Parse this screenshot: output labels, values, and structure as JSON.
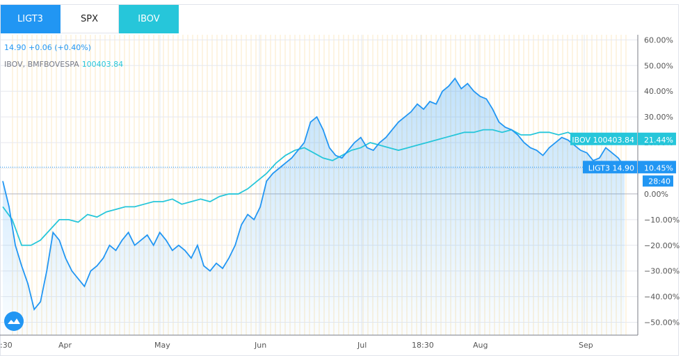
{
  "tabs": [
    {
      "label": "LIGT3"
    },
    {
      "label": "SPX"
    },
    {
      "label": "IBOV"
    }
  ],
  "legend": {
    "line1": "14.90 +0.06 (+0.40%)",
    "line2_label": "IBOV, BMFBOVESPA",
    "line2_value": "100403.84"
  },
  "colors": {
    "ligt3": "#2196f3",
    "ibov": "#26c6da",
    "grid": "#e6e8ee",
    "stripe": "#fbe9c4"
  },
  "chart_data": {
    "type": "line",
    "ylim": [
      -55,
      62
    ],
    "y_ticks": [
      "60.00%",
      "50.00%",
      "40.00%",
      "30.00%",
      "20.00%",
      "10.00%",
      "0.00%",
      "−10.00%",
      "−20.00%",
      "−30.00%",
      "−40.00%",
      "−50.00%"
    ],
    "y_tick_values": [
      60,
      50,
      40,
      30,
      20,
      10,
      0,
      -10,
      -20,
      -30,
      -40,
      -50
    ],
    "x_labels": [
      ":30",
      "Apr",
      "May",
      "Jun",
      "Jul",
      "18:30",
      "Aug",
      "Sep"
    ],
    "series": [
      {
        "name": "LIGT3",
        "values": [
          5,
          -5,
          -20,
          -28,
          -35,
          -45,
          -42,
          -30,
          -15,
          -18,
          -25,
          -30,
          -33,
          -36,
          -30,
          -28,
          -25,
          -20,
          -22,
          -18,
          -15,
          -20,
          -18,
          -16,
          -20,
          -15,
          -18,
          -22,
          -20,
          -22,
          -25,
          -20,
          -28,
          -30,
          -27,
          -29,
          -25,
          -20,
          -12,
          -8,
          -10,
          -5,
          5,
          8,
          10,
          12,
          14,
          17,
          20,
          28,
          30,
          25,
          18,
          15,
          14,
          17,
          20,
          22,
          18,
          17,
          20,
          22,
          25,
          28,
          30,
          32,
          35,
          33,
          36,
          35,
          40,
          42,
          45,
          41,
          43,
          40,
          38,
          37,
          33,
          28,
          26,
          25,
          23,
          20,
          18,
          17,
          15,
          18,
          20,
          22,
          21,
          19,
          17,
          16,
          13,
          14,
          18,
          16,
          14,
          10.45
        ],
        "last_label": "LIGT3 14.90",
        "last_pct": "10.45%"
      },
      {
        "name": "IBOV",
        "values": [
          -5,
          -10,
          -20,
          -20,
          -18,
          -14,
          -10,
          -10,
          -11,
          -8,
          -9,
          -7,
          -6,
          -5,
          -5,
          -4,
          -3,
          -3,
          -2,
          -4,
          -3,
          -2,
          -3,
          -1,
          0,
          0,
          2,
          5,
          8,
          12,
          15,
          17,
          18,
          16,
          14,
          13,
          15,
          17,
          18,
          20,
          19,
          18,
          17,
          18,
          19,
          20,
          21,
          22,
          23,
          24,
          24,
          25,
          25,
          24,
          25,
          23,
          23,
          24,
          24,
          23,
          24,
          22,
          22,
          23,
          22,
          21,
          21.44
        ],
        "last_label": "IBOV 100403.84",
        "last_pct": "21.44%"
      }
    ],
    "time_label": "28:40"
  }
}
